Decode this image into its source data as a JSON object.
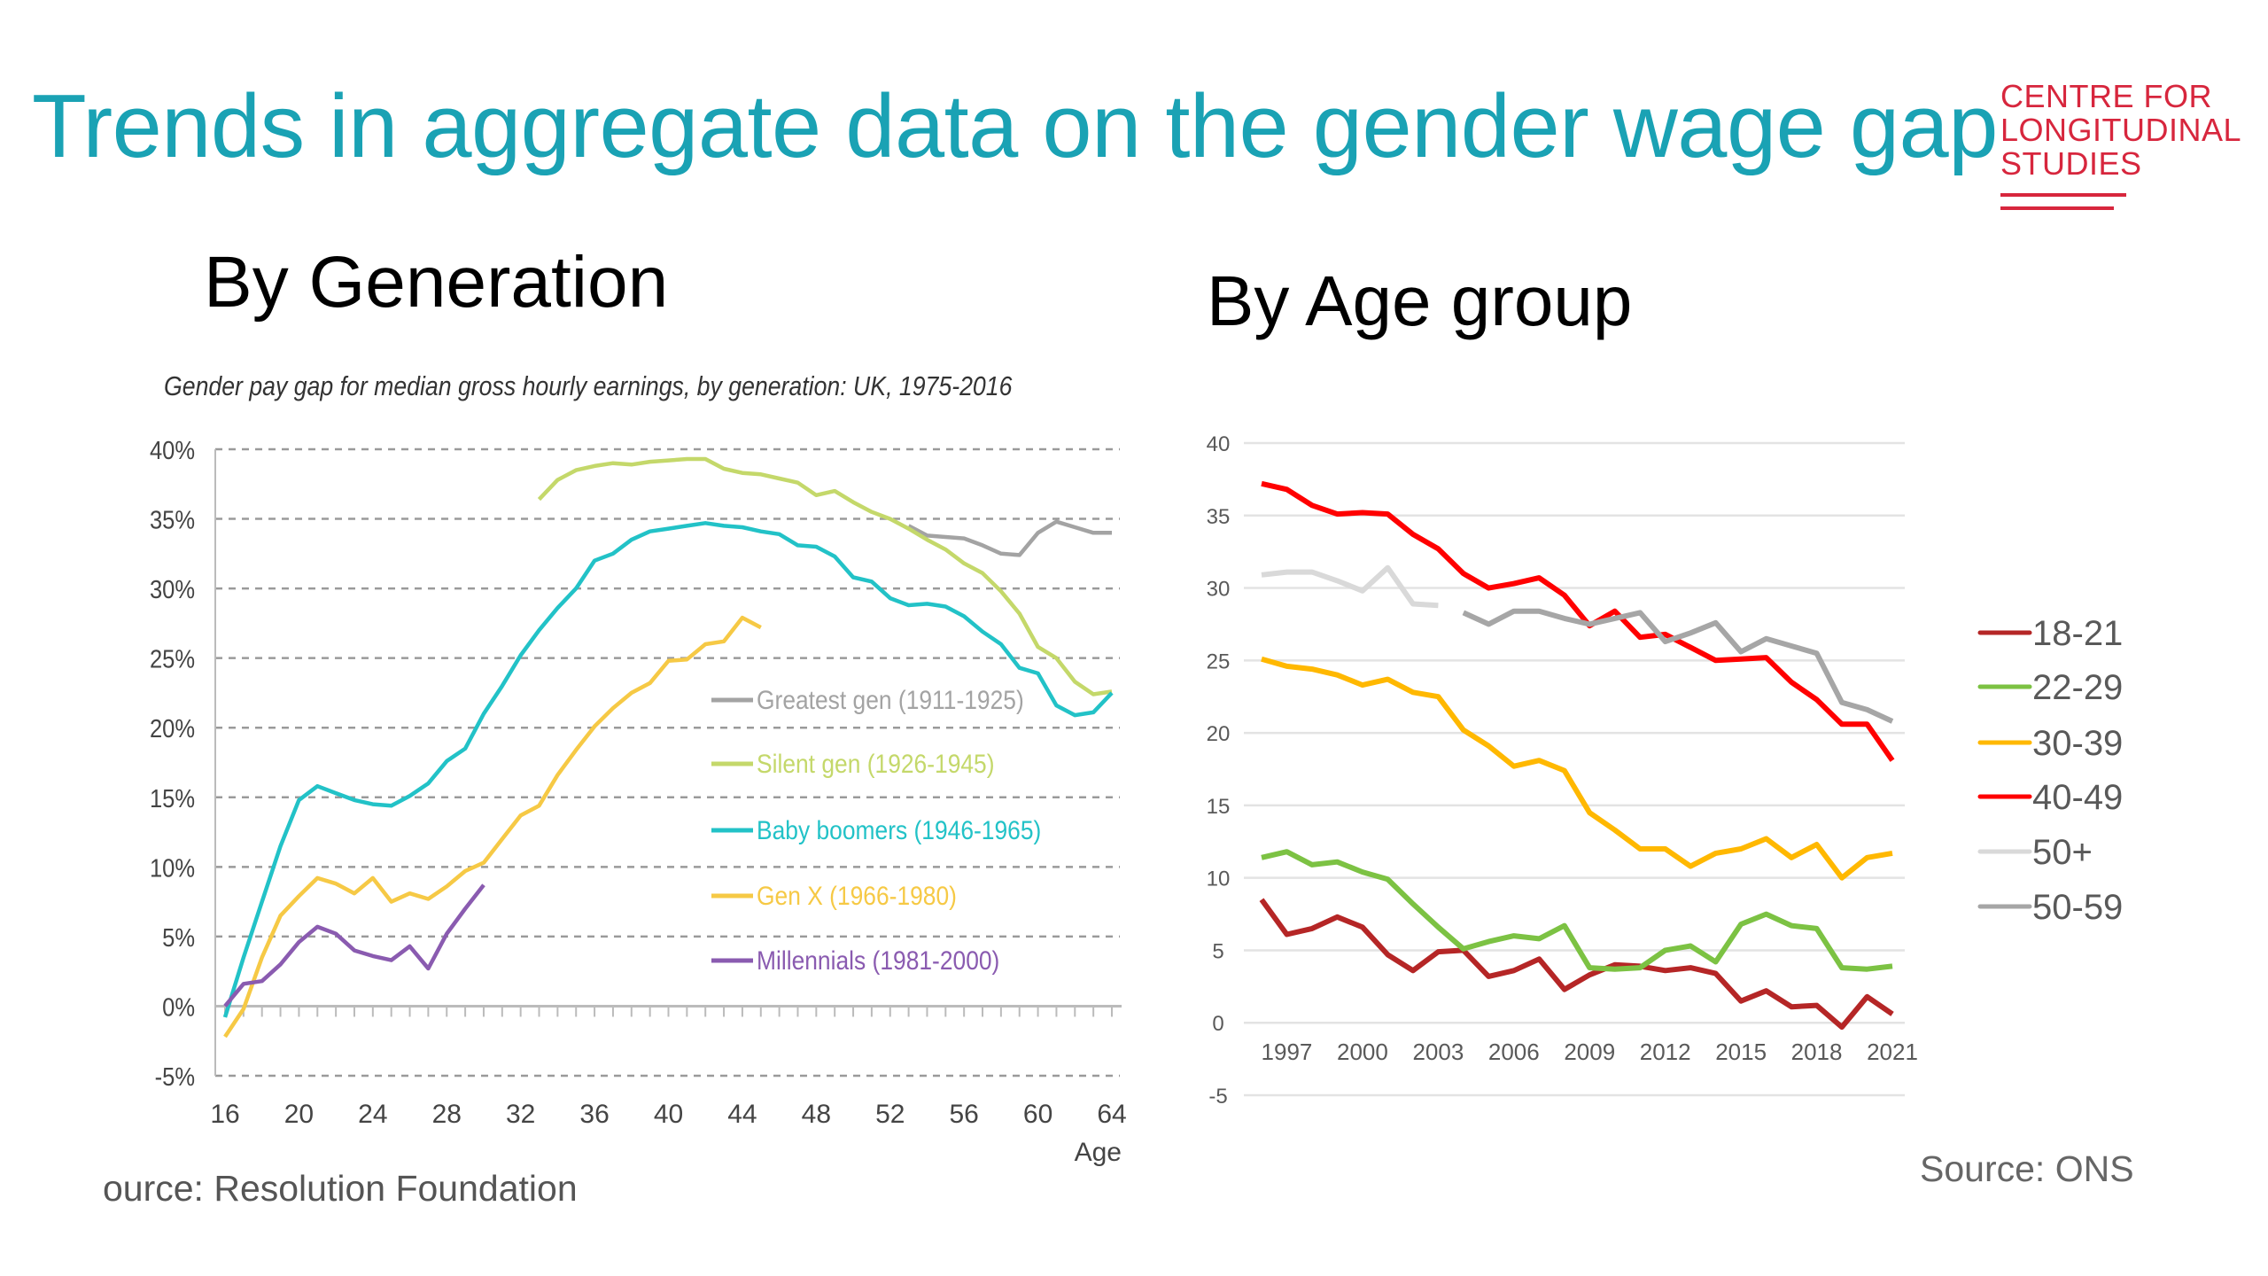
{
  "header": {
    "title": "Trends in aggregate data on the gender wage gap"
  },
  "logo": {
    "lines": [
      "CENTRE FOR",
      "LONGITUDINAL",
      "STUDIES"
    ],
    "color": "#d7263d"
  },
  "sections": {
    "generation": "By Generation",
    "age_group": "By Age group"
  },
  "sources": {
    "left": "ource: Resolution Foundation",
    "right": "Source: ONS"
  },
  "chart_data": [
    {
      "type": "line",
      "title": "Gender pay gap for median gross hourly earnings, by generation: UK, 1975-2016",
      "xlabel": "Age",
      "ylabel": "",
      "xlim": [
        16,
        64
      ],
      "ylim": [
        -5,
        40
      ],
      "xticks": [
        16,
        20,
        24,
        28,
        32,
        36,
        40,
        44,
        48,
        52,
        56,
        60,
        64
      ],
      "yticks": [
        "-5%",
        "0%",
        "5%",
        "10%",
        "15%",
        "20%",
        "25%",
        "30%",
        "35%",
        "40%"
      ],
      "grid": "horizontal dashed",
      "legend": "inside center-right",
      "x": [
        16,
        17,
        18,
        19,
        20,
        21,
        22,
        23,
        24,
        25,
        26,
        27,
        28,
        29,
        30,
        31,
        32,
        33,
        34,
        35,
        36,
        37,
        38,
        39,
        40,
        41,
        42,
        43,
        44,
        45,
        46,
        47,
        48,
        49,
        50,
        51,
        52,
        53,
        54,
        55,
        56,
        57,
        58,
        59,
        60,
        61,
        62,
        63,
        64
      ],
      "series": [
        {
          "name": "Greatest gen (1911-1925)",
          "color": "#a3a3a3",
          "values": [
            null,
            null,
            null,
            null,
            null,
            null,
            null,
            null,
            null,
            null,
            null,
            null,
            null,
            null,
            null,
            null,
            null,
            null,
            null,
            null,
            null,
            null,
            null,
            null,
            null,
            null,
            null,
            null,
            null,
            null,
            null,
            null,
            null,
            null,
            null,
            null,
            null,
            34.5,
            33.8,
            33.7,
            33.6,
            33.1,
            32.5,
            32.4,
            34.0,
            34.8,
            34.4,
            34.0,
            34.0
          ]
        },
        {
          "name": "Silent gen (1926-1945)",
          "color": "#c4d86a",
          "values": [
            null,
            null,
            null,
            null,
            null,
            null,
            null,
            null,
            null,
            null,
            null,
            null,
            null,
            null,
            null,
            null,
            null,
            36.4,
            37.8,
            38.5,
            38.8,
            39.0,
            38.9,
            39.1,
            39.2,
            39.3,
            39.3,
            38.6,
            38.3,
            38.2,
            37.9,
            37.6,
            36.7,
            37.0,
            36.2,
            35.5,
            35.0,
            34.3,
            33.5,
            32.8,
            31.8,
            31.1,
            29.8,
            28.2,
            25.8,
            25.0,
            23.3,
            22.4,
            22.6
          ]
        },
        {
          "name": "Baby boomers (1946-1965)",
          "color": "#22c2c7",
          "values": [
            -0.8,
            3.5,
            7.5,
            11.5,
            14.8,
            15.8,
            15.3,
            14.8,
            14.5,
            14.4,
            15.1,
            16.0,
            17.6,
            18.5,
            21.0,
            23.0,
            25.2,
            27.0,
            28.6,
            30.0,
            32.0,
            32.5,
            33.5,
            34.1,
            34.3,
            34.5,
            34.7,
            34.5,
            34.4,
            34.1,
            33.9,
            33.1,
            33.0,
            32.3,
            30.8,
            30.5,
            29.3,
            28.8,
            28.9,
            28.7,
            28.0,
            26.9,
            26.0,
            24.3,
            23.9,
            21.6,
            20.9,
            21.1,
            22.5
          ]
        },
        {
          "name": "Gen X (1966-1980)",
          "color": "#f6c945",
          "values": [
            -2.2,
            -0.2,
            3.5,
            6.5,
            7.9,
            9.2,
            8.8,
            8.1,
            9.2,
            7.5,
            8.1,
            7.7,
            8.6,
            9.7,
            10.3,
            12.0,
            13.7,
            14.4,
            16.6,
            18.4,
            20.1,
            21.4,
            22.5,
            23.2,
            24.8,
            24.9,
            26.0,
            26.2,
            27.9,
            27.2,
            null,
            null,
            null,
            null,
            null,
            null,
            null,
            null,
            null,
            null,
            null,
            null,
            null,
            null,
            null,
            null,
            null,
            null,
            null
          ]
        },
        {
          "name": "Millennials (1981-2000)",
          "color": "#8a5bb0",
          "values": [
            0.0,
            1.6,
            1.8,
            3.0,
            4.6,
            5.7,
            5.2,
            4.0,
            3.6,
            3.3,
            4.3,
            2.7,
            5.2,
            7.0,
            8.7,
            null,
            null,
            null,
            null,
            null,
            null,
            null,
            null,
            null,
            null,
            null,
            null,
            null,
            null,
            null,
            null,
            null,
            null,
            null,
            null,
            null,
            null,
            null,
            null,
            null,
            null,
            null,
            null,
            null,
            null,
            null,
            null,
            null,
            null
          ]
        }
      ]
    },
    {
      "type": "line",
      "title": "",
      "xlabel": "",
      "ylabel": "",
      "xlim": [
        1996,
        2021
      ],
      "ylim": [
        -5,
        40
      ],
      "xticks": [
        1997,
        2000,
        2003,
        2006,
        2009,
        2012,
        2015,
        2018,
        2021
      ],
      "yticks": [
        "-5",
        "0",
        "5",
        "10",
        "15",
        "20",
        "25",
        "30",
        "35",
        "40"
      ],
      "grid": "horizontal",
      "legend": "right",
      "x": [
        1996,
        1997,
        1998,
        1999,
        2000,
        2001,
        2002,
        2003,
        2004,
        2005,
        2006,
        2007,
        2008,
        2009,
        2010,
        2011,
        2012,
        2013,
        2014,
        2015,
        2016,
        2017,
        2018,
        2019,
        2020,
        2021
      ],
      "series": [
        {
          "name": "18-21",
          "color": "#b52626",
          "values": [
            8.5,
            6.1,
            6.5,
            7.3,
            6.6,
            4.7,
            3.6,
            4.9,
            5.0,
            3.2,
            3.6,
            4.4,
            2.3,
            3.3,
            4.0,
            3.9,
            3.6,
            3.8,
            3.4,
            1.5,
            2.2,
            1.1,
            1.2,
            -0.3,
            1.8,
            0.6
          ]
        },
        {
          "name": "22-29",
          "color": "#7cc243",
          "values": [
            11.4,
            11.8,
            10.9,
            11.1,
            10.4,
            9.9,
            8.2,
            6.6,
            5.1,
            5.6,
            6.0,
            5.8,
            6.7,
            3.8,
            3.7,
            3.8,
            5.0,
            5.3,
            4.2,
            6.8,
            7.5,
            6.7,
            6.5,
            3.8,
            3.7,
            3.9
          ]
        },
        {
          "name": "30-39",
          "color": "#ffb800",
          "values": [
            25.1,
            24.6,
            24.4,
            24.0,
            23.3,
            23.7,
            22.8,
            22.5,
            20.2,
            19.1,
            17.7,
            18.1,
            17.4,
            14.5,
            13.3,
            12.0,
            12.0,
            10.8,
            11.7,
            12.0,
            12.7,
            11.4,
            12.3,
            10.0,
            11.4,
            11.7
          ]
        },
        {
          "name": "40-49",
          "color": "#ff0000",
          "values": [
            37.2,
            36.8,
            35.7,
            35.1,
            35.2,
            35.1,
            33.7,
            32.7,
            31.0,
            30.0,
            30.3,
            30.7,
            29.5,
            27.4,
            28.4,
            26.6,
            26.8,
            25.9,
            25.0,
            25.1,
            25.2,
            23.5,
            22.3,
            20.6,
            20.6,
            18.1
          ]
        },
        {
          "name": "50+",
          "color": "#d9d9d9",
          "values": [
            30.9,
            31.1,
            31.1,
            30.5,
            29.8,
            31.4,
            28.9,
            28.8,
            null,
            null,
            null,
            null,
            null,
            null,
            null,
            null,
            null,
            null,
            null,
            null,
            null,
            null,
            null,
            null,
            null,
            null
          ]
        },
        {
          "name": "50-59",
          "color": "#a6a6a6",
          "values": [
            null,
            null,
            null,
            null,
            null,
            null,
            null,
            null,
            28.3,
            27.5,
            28.4,
            28.4,
            27.9,
            27.5,
            27.9,
            28.3,
            26.3,
            26.9,
            27.6,
            25.6,
            26.5,
            26.0,
            25.5,
            22.1,
            21.6,
            20.8
          ]
        }
      ]
    }
  ]
}
